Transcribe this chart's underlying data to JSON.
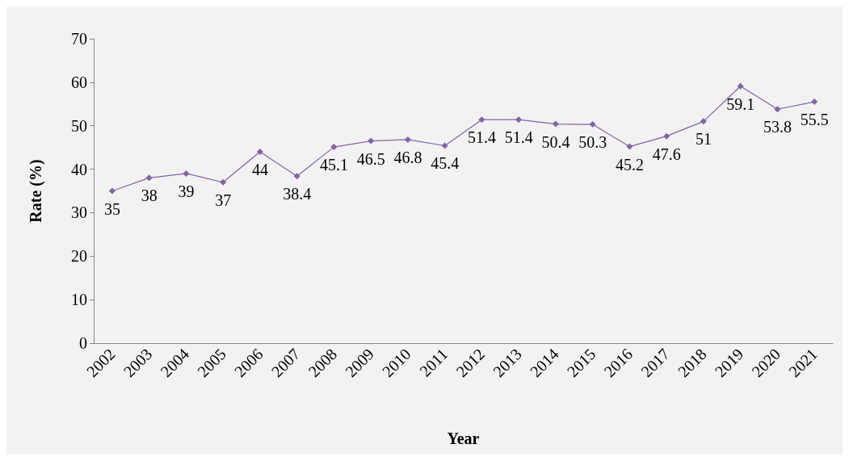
{
  "chart_data": {
    "type": "line",
    "xlabel": "Year",
    "ylabel": "Rate (%)",
    "categories": [
      "2002",
      "2003",
      "2004",
      "2005",
      "2006",
      "2007",
      "2008",
      "2009",
      "2010",
      "2011",
      "2012",
      "2013",
      "2014",
      "2015",
      "2016",
      "2017",
      "2018",
      "2019",
      "2020",
      "2021"
    ],
    "series": [
      {
        "color": "#8064a2",
        "values": [
          35,
          38,
          39,
          37,
          44,
          38.4,
          45.1,
          46.5,
          46.8,
          45.4,
          51.4,
          51.4,
          50.4,
          50.3,
          45.2,
          47.6,
          51,
          59.1,
          53.8,
          55.5
        ]
      }
    ],
    "ylim": [
      0,
      70
    ],
    "yticks": [
      0,
      10,
      20,
      30,
      40,
      50,
      60,
      70
    ],
    "grid": false,
    "marker": "diamond",
    "line_style": "solid",
    "data_labels": true
  }
}
